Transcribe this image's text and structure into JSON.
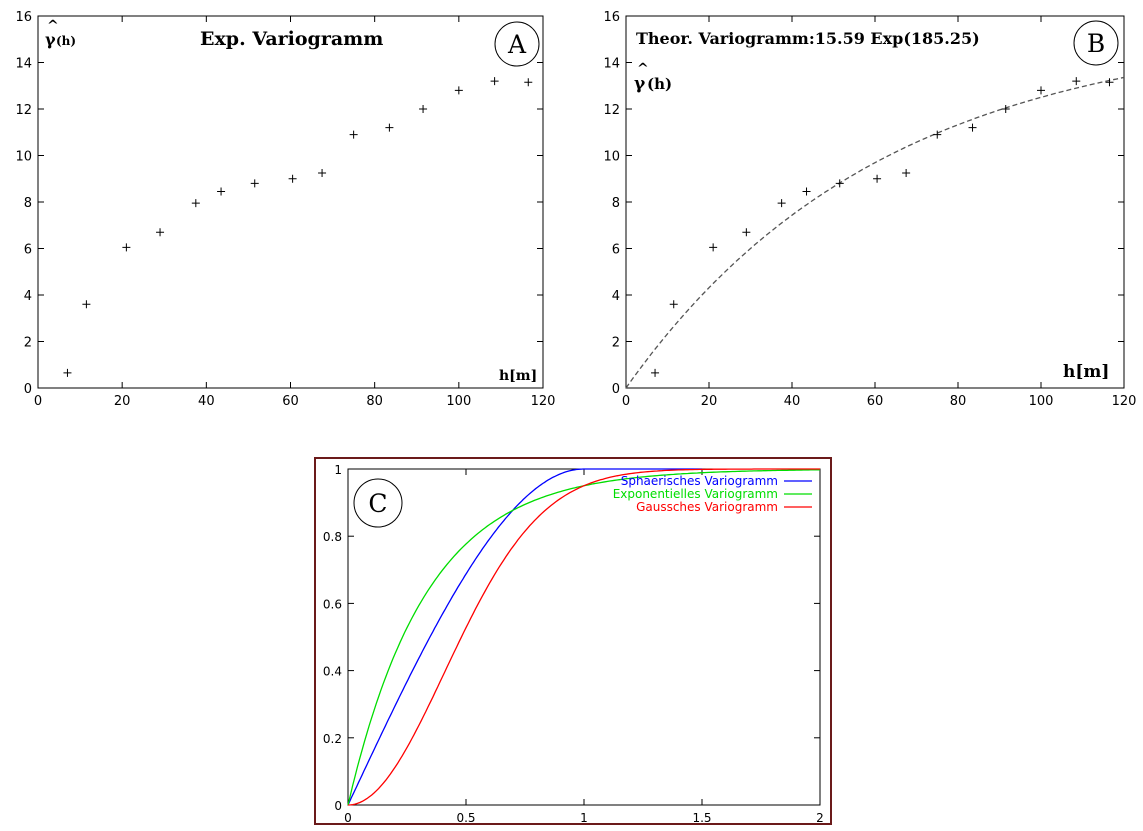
{
  "panels": {
    "a": {
      "badge": "A",
      "title": "Exp. Variogramm",
      "ylabel": "γ̂(h)",
      "ylabel_base": "γ",
      "ylabel_hat": "^",
      "ylabel_arg": "(h)",
      "xlabel": "h[m]"
    },
    "b": {
      "badge": "B",
      "title": "Theor. Variogramm:15.59 Exp(185.25)",
      "ylabel": "γ̂(h)",
      "ylabel_base": "γ",
      "ylabel_hat": "^",
      "ylabel_arg": "(h)",
      "xlabel": "h[m]"
    },
    "c": {
      "badge": "C"
    }
  },
  "colors": {
    "spherical": "#0000ff",
    "exponential": "#00dd00",
    "gaussian": "#ff0000",
    "frame_c": "#6b1a1a",
    "fit": "#555555"
  },
  "chart_data": [
    {
      "type": "scatter",
      "title": "Exp. Variogramm",
      "xlabel": "h[m]",
      "ylabel": "γ̂(h)",
      "xlim": [
        0,
        120
      ],
      "ylim": [
        0,
        16
      ],
      "xticks": [
        "0",
        "20",
        "40",
        "60",
        "80",
        "100",
        "120"
      ],
      "yticks": [
        "0",
        "2",
        "4",
        "6",
        "8",
        "10",
        "12",
        "14",
        "16"
      ],
      "series": [
        {
          "marker": "+",
          "x": [
            7,
            11.5,
            21,
            29,
            37.5,
            43.5,
            51.5,
            60.5,
            67.5,
            75,
            83.5,
            91.5,
            100,
            108.5,
            116.5
          ],
          "y": [
            0.65,
            3.6,
            6.05,
            6.7,
            7.95,
            8.45,
            8.8,
            9.0,
            9.25,
            10.9,
            11.2,
            12.0,
            12.8,
            13.2,
            13.15
          ]
        }
      ]
    },
    {
      "type": "scatter",
      "title": "Theor. Variogramm:15.59 Exp(185.25)",
      "xlabel": "h[m]",
      "ylabel": "γ̂(h)",
      "xlim": [
        0,
        120
      ],
      "ylim": [
        0,
        16
      ],
      "xticks": [
        "0",
        "20",
        "40",
        "60",
        "80",
        "100",
        "120"
      ],
      "yticks": [
        "0",
        "2",
        "4",
        "6",
        "8",
        "10",
        "12",
        "14",
        "16"
      ],
      "series": [
        {
          "marker": "+",
          "x": [
            7,
            11.5,
            21,
            29,
            37.5,
            43.5,
            51.5,
            60.5,
            67.5,
            75,
            83.5,
            91.5,
            100,
            108.5,
            116.5
          ],
          "y": [
            0.65,
            3.6,
            6.05,
            6.7,
            7.95,
            8.45,
            8.8,
            9.0,
            9.25,
            10.9,
            11.2,
            12.0,
            12.8,
            13.2,
            13.15
          ]
        },
        {
          "style": "dashed",
          "model": "exponential",
          "sill": 15.59,
          "range": 185.25
        }
      ]
    },
    {
      "type": "line",
      "xlim": [
        0,
        2
      ],
      "ylim": [
        0,
        1
      ],
      "xticks": [
        "0",
        "0.5",
        "1",
        "1.5",
        "2"
      ],
      "yticks": [
        "0",
        "0.2",
        "0.4",
        "0.6",
        "0.8",
        "1"
      ],
      "legend": "top-right",
      "series": [
        {
          "name": "Sphaerisches Variogramm",
          "model": "spherical",
          "range": 1,
          "x_end": 1.5
        },
        {
          "name": "Exponentielles Variogramm",
          "model": "exponential",
          "range": 1
        },
        {
          "name": "Gaussches Variogramm",
          "model": "gaussian",
          "range": 1
        }
      ]
    }
  ]
}
